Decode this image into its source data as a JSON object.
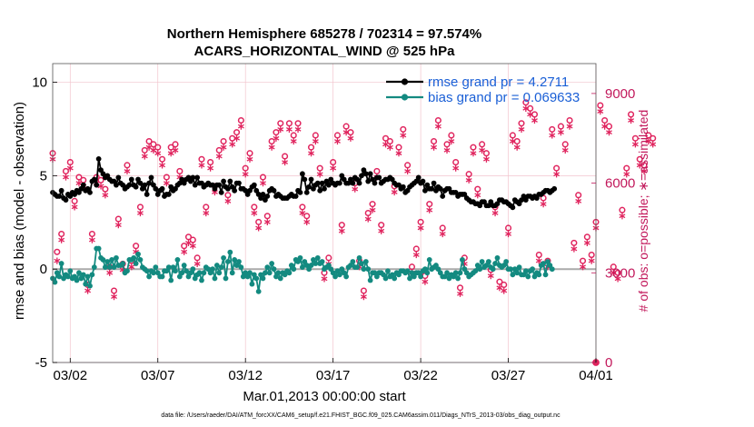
{
  "chart_data": {
    "type": "line",
    "title": "Northern Hemisphere 685278 / 702314 = 97.574%",
    "subtitle": "ACARS_HORIZONTAL_WIND @ 525 hPa",
    "xlabel": "Mar.01,2013 00:00:00 start",
    "ylabel": "rmse and bias (model - observation)",
    "ylabel_right": "# of obs: o=possible; ∗=assimilated",
    "footnote": "data file: /Users/raeder/DAI/ATM_forcXX/CAM6_setup/f.e21.FHIST_BGC.f09_025.CAM6assim.011/Diags_NTrS_2013-03/obs_diag_output.nc",
    "x_tick_labels": [
      "03/02",
      "03/07",
      "03/12",
      "03/17",
      "03/22",
      "03/27",
      "04/01"
    ],
    "x_tick_days": [
      1,
      6,
      11,
      16,
      21,
      26,
      31
    ],
    "xlim_days": [
      0,
      31
    ],
    "ylim": [
      -5,
      11
    ],
    "y_ticks": [
      -5,
      0,
      5,
      10
    ],
    "ylim_right": [
      0,
      10000
    ],
    "y_ticks_right": [
      0,
      3000,
      6000,
      9000
    ],
    "grid": true,
    "legend_location": "top-right",
    "colors": {
      "rmse": "#000000",
      "bias": "#138a80",
      "obs": "#e0245e",
      "zero_line": "#aaaaaa",
      "legend_text": "#1a5fd6",
      "right_axis": "#c2185b",
      "grid": "#f2c4cd"
    },
    "series": [
      {
        "name": "rmse grand pr = 4.2711",
        "marker": "filled-circle",
        "x_step_hours": 3,
        "values": [
          4.1,
          4.0,
          3.9,
          3.9,
          4.2,
          3.8,
          3.7,
          4.0,
          3.9,
          4.1,
          4.0,
          4.2,
          4.1,
          4.3,
          4.5,
          4.2,
          4.3,
          4.1,
          4.7,
          4.8,
          4.5,
          5.9,
          5.3,
          5.1,
          4.9,
          5.0,
          4.8,
          4.7,
          4.7,
          4.5,
          4.9,
          4.6,
          4.5,
          4.3,
          4.4,
          4.5,
          4.8,
          4.5,
          4.4,
          4.8,
          4.6,
          4.3,
          4.5,
          4.0,
          4.6,
          4.9,
          4.5,
          4.3,
          4.0,
          4.2,
          4.3,
          3.9,
          4.0,
          4.0,
          4.4,
          4.2,
          4.3,
          4.5,
          4.6,
          4.8,
          4.6,
          4.8,
          4.9,
          4.7,
          4.9,
          4.5,
          4.9,
          4.6,
          4.6,
          4.4,
          4.5,
          4.6,
          4.5,
          4.5,
          4.3,
          4.5,
          4.5,
          4.1,
          4.7,
          4.4,
          4.3,
          4.7,
          4.4,
          4.2,
          4.6,
          4.6,
          4.3,
          4.3,
          4.2,
          4.0,
          4.2,
          4.4,
          4.5,
          4.2,
          4.0,
          3.8,
          4.0,
          3.7,
          3.9,
          4.2,
          4.3,
          4.2,
          3.9,
          4.0,
          3.9,
          3.8,
          3.8,
          3.8,
          3.9,
          4.0,
          3.9,
          3.9,
          4.2,
          4.1,
          5.1,
          4.8,
          4.1,
          4.4,
          4.8,
          4.3,
          4.5,
          4.6,
          4.2,
          4.6,
          4.3,
          4.7,
          4.5,
          4.8,
          4.6,
          4.5,
          4.6,
          4.6,
          5.0,
          4.8,
          4.6,
          4.6,
          4.8,
          4.6,
          4.9,
          4.8,
          4.6,
          5.0,
          5.3,
          5.1,
          4.7,
          5.1,
          4.8,
          4.6,
          4.9,
          4.9,
          4.6,
          4.7,
          4.8,
          4.8,
          4.9,
          4.8,
          4.6,
          4.5,
          4.5,
          4.3,
          4.4,
          4.1,
          4.2,
          4.4,
          4.5,
          4.6,
          4.7,
          4.9,
          4.6,
          4.7,
          4.2,
          4.5,
          4.3,
          4.3,
          4.6,
          4.2,
          4.4,
          4.3,
          3.9,
          4.2,
          4.3,
          4.3,
          4.1,
          4.1,
          4.1,
          3.9,
          4.0,
          4.0,
          4.0,
          3.8,
          3.7,
          3.6,
          3.6,
          3.5,
          3.5,
          3.4,
          3.6,
          3.6,
          3.4,
          3.4,
          3.6,
          3.4,
          3.4,
          3.5,
          3.7,
          3.7,
          3.6,
          3.6,
          3.5,
          3.4,
          3.3,
          3.7,
          3.6,
          3.5,
          3.7,
          3.9,
          3.7,
          3.9,
          3.9,
          3.8,
          3.9,
          3.8,
          4.0,
          4.0,
          4.1,
          4.2,
          4.2,
          4.1,
          4.2,
          4.3
        ]
      },
      {
        "name": "bias grand pr = 0.069633",
        "marker": "filled-circle",
        "x_step_hours": 3,
        "values": [
          -0.5,
          -0.7,
          -0.2,
          -0.4,
          0.3,
          -0.5,
          -0.3,
          -0.4,
          -0.1,
          -0.5,
          -0.4,
          -0.6,
          -0.2,
          -0.5,
          -0.3,
          -0.8,
          -0.4,
          -0.9,
          -0.3,
          0.1,
          1.1,
          1.1,
          0.6,
          0.5,
          0.1,
          0.4,
          0.1,
          0.5,
          0.1,
          0.6,
          0.2,
          0.2,
          0.3,
          -0.2,
          -0.1,
          0.5,
          0.5,
          0.6,
          0.3,
          0.8,
          0.5,
          0.1,
          0.0,
          -0.1,
          -0.4,
          -0.1,
          -0.2,
          0.1,
          -0.2,
          -0.4,
          -0.4,
          -0.1,
          -0.1,
          0.1,
          -0.6,
          0.1,
          -0.1,
          0.5,
          -0.4,
          -0.2,
          0.2,
          -0.1,
          -0.4,
          -0.2,
          0.0,
          -0.5,
          -0.3,
          -0.2,
          -0.6,
          -0.2,
          0.1,
          0.0,
          -0.2,
          0.0,
          -0.5,
          0.2,
          -0.2,
          0.1,
          0.6,
          -0.5,
          0.4,
          0.9,
          -0.2,
          0.5,
          0.2,
          0.4,
          0.1,
          -0.4,
          -0.2,
          -0.4,
          -0.2,
          -0.8,
          -0.3,
          -0.5,
          -1.2,
          -0.3,
          -0.5,
          -0.2,
          0.1,
          -0.2,
          0.3,
          0.0,
          -0.4,
          -0.2,
          -0.5,
          -0.2,
          -0.3,
          -0.1,
          -0.2,
          0.2,
          0.0,
          0.5,
          0.4,
          0.6,
          0.1,
          0.4,
          0.2,
          0.0,
          0.2,
          0.5,
          0.3,
          0.6,
          0.3,
          0.4,
          0.0,
          0.1,
          0.2,
          0.0,
          -0.2,
          -0.4,
          -0.1,
          -0.3,
          0.0,
          -0.2,
          -0.4,
          0.1,
          0.2,
          0.4,
          0.1,
          0.1,
          0.6,
          0.3,
          0.0,
          0.4,
          0.0,
          -0.6,
          -0.2,
          -0.2,
          -0.4,
          -0.2,
          -0.2,
          -0.3,
          -0.5,
          -0.1,
          -0.4,
          -0.3,
          -0.5,
          -0.2,
          -0.3,
          -0.1,
          -0.1,
          -0.2,
          -0.1,
          -0.5,
          -0.2,
          -0.4,
          -0.2,
          -0.2,
          -0.4,
          -0.1,
          0.0,
          -0.2,
          0.5,
          0.0,
          0.1,
          0.2,
          0.0,
          -0.2,
          -0.4,
          -0.4,
          -0.2,
          -0.5,
          -0.3,
          -0.4,
          -0.2,
          -0.5,
          -0.2,
          0.5,
          0.0,
          -0.2,
          -0.4,
          -0.3,
          -0.2,
          -0.1,
          0.2,
          0.0,
          0.4,
          0.1,
          0.2,
          0.4,
          0.1,
          0.0,
          0.3,
          0.6,
          0.2,
          0.1,
          0.2,
          0.4,
          0.0,
          0.0,
          -0.3,
          0.0,
          -0.2,
          0.1,
          -0.3,
          -0.3,
          -0.1,
          -0.4,
          -0.1,
          0.0,
          -0.4,
          -0.2,
          -0.3,
          0.2,
          0.3,
          -0.3,
          0.4,
          0.2,
          0.0
        ]
      },
      {
        "name": "possible observations (o)",
        "marker": "open-circle",
        "axis": "right",
        "x_step_hours": 6,
        "values": [
          7000,
          3700,
          4300,
          6400,
          6700,
          5400,
          6200,
          6100,
          2600,
          4300,
          6200,
          6100,
          5800,
          3200,
          2400,
          4800,
          3300,
          6600,
          3400,
          3900,
          5200,
          7100,
          7400,
          7300,
          7200,
          6800,
          6200,
          7200,
          7300,
          6400,
          3900,
          4200,
          4100,
          3500,
          6800,
          5200,
          6700,
          5900,
          7100,
          7400,
          5600,
          7500,
          7700,
          8100,
          6500,
          7000,
          5200,
          4700,
          6200,
          4900,
          7400,
          7700,
          8000,
          6900,
          8000,
          7600,
          8000,
          5200,
          4900,
          7200,
          7600,
          6500,
          3000,
          3500,
          6700,
          7600,
          4600,
          7900,
          7700,
          6000,
          3400,
          2400,
          5000,
          5300,
          6400,
          4600,
          7500,
          7400,
          5900,
          7200,
          7800,
          6600,
          3200,
          3800,
          4700,
          2900,
          5300,
          7400,
          8100,
          4500,
          7300,
          7600,
          6700,
          2500,
          3500,
          6300,
          7200,
          5800,
          7300,
          7000,
          3100,
          5200,
          2700,
          2600,
          4500,
          7600,
          7400,
          8000,
          8700,
          8500,
          8300,
          3600,
          5500,
          3400,
          7800,
          6500,
          7900,
          7300,
          8100,
          4000,
          5600,
          3400,
          4200,
          3600,
          4700,
          8600,
          8100,
          7900,
          3200,
          3000,
          5100,
          6500,
          8300,
          7500,
          6800,
          6600,
          7600,
          7500
        ]
      },
      {
        "name": "assimilated observations (∗)",
        "marker": "asterisk",
        "axis": "right",
        "x_step_hours": 6,
        "values": [
          6800,
          3400,
          4100,
          6200,
          6500,
          5200,
          6000,
          5900,
          2400,
          4100,
          6000,
          5900,
          5600,
          3000,
          2200,
          4600,
          3100,
          6400,
          3200,
          3700,
          5000,
          6900,
          7200,
          7100,
          7000,
          6600,
          6000,
          7000,
          7100,
          6200,
          3700,
          4000,
          3900,
          3300,
          6600,
          5000,
          6500,
          5700,
          6900,
          7200,
          5400,
          7300,
          7500,
          7900,
          6300,
          6800,
          5000,
          4500,
          6000,
          4700,
          7200,
          7500,
          7800,
          6700,
          7800,
          7400,
          7800,
          5000,
          4700,
          7000,
          7400,
          6300,
          2800,
          3300,
          6500,
          7400,
          4400,
          7700,
          7500,
          5800,
          3200,
          2200,
          4800,
          5100,
          6200,
          4400,
          7300,
          7200,
          5700,
          7000,
          7600,
          6400,
          3000,
          3600,
          4500,
          2700,
          5100,
          7200,
          7900,
          4300,
          7100,
          7400,
          6500,
          2300,
          3300,
          6100,
          7000,
          5600,
          7100,
          6800,
          2900,
          5000,
          2500,
          2400,
          4300,
          7400,
          7200,
          7800,
          8500,
          8300,
          8100,
          3400,
          5300,
          3200,
          7600,
          6300,
          7700,
          7100,
          7900,
          3800,
          5400,
          3200,
          4000,
          3400,
          4500,
          8400,
          7900,
          7700,
          3000,
          2800,
          4900,
          6300,
          8100,
          7300,
          6600,
          6400,
          7400,
          7300
        ]
      }
    ]
  }
}
